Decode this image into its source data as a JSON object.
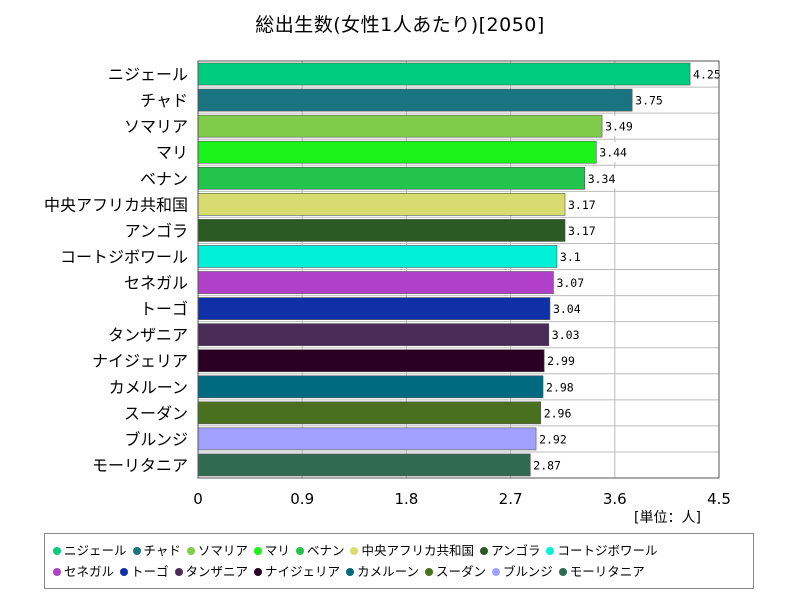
{
  "chart_data": {
    "type": "bar",
    "orientation": "horizontal",
    "title": "総出生数(女性1人あたり)[2050]",
    "unit_label": "[単位：人]",
    "categories": [
      "ニジェール",
      "チャド",
      "ソマリア",
      "マリ",
      "ベナン",
      "中央アフリカ共和国",
      "アンゴラ",
      "コートジボワール",
      "セネガル",
      "トーゴ",
      "タンザニア",
      "ナイジェリア",
      "カメルーン",
      "スーダン",
      "ブルンジ",
      "モーリタニア"
    ],
    "values": [
      4.25,
      3.75,
      3.49,
      3.44,
      3.34,
      3.17,
      3.17,
      3.1,
      3.07,
      3.04,
      3.03,
      2.99,
      2.98,
      2.96,
      2.92,
      2.87
    ],
    "value_labels": [
      "4.25",
      "3.75",
      "3.49",
      "3.44",
      "3.34",
      "3.17",
      "3.17",
      "3.1",
      "3.07",
      "3.04",
      "3.03",
      "2.99",
      "2.98",
      "2.96",
      "2.92",
      "2.87"
    ],
    "colors": [
      "#00cc80",
      "#1a7380",
      "#7fcc4a",
      "#1af21a",
      "#22c44c",
      "#d8dc70",
      "#2b5a22",
      "#00f0d8",
      "#b040c8",
      "#1030a8",
      "#4a2a56",
      "#2a0024",
      "#006a80",
      "#48701e",
      "#a0a0ff",
      "#306a50"
    ],
    "xlim": [
      0,
      4.5
    ],
    "x_ticks": [
      "0",
      "0.9",
      "1.8",
      "2.7",
      "3.6",
      "4.5"
    ],
    "grid": true,
    "legend_position": "bottom"
  }
}
